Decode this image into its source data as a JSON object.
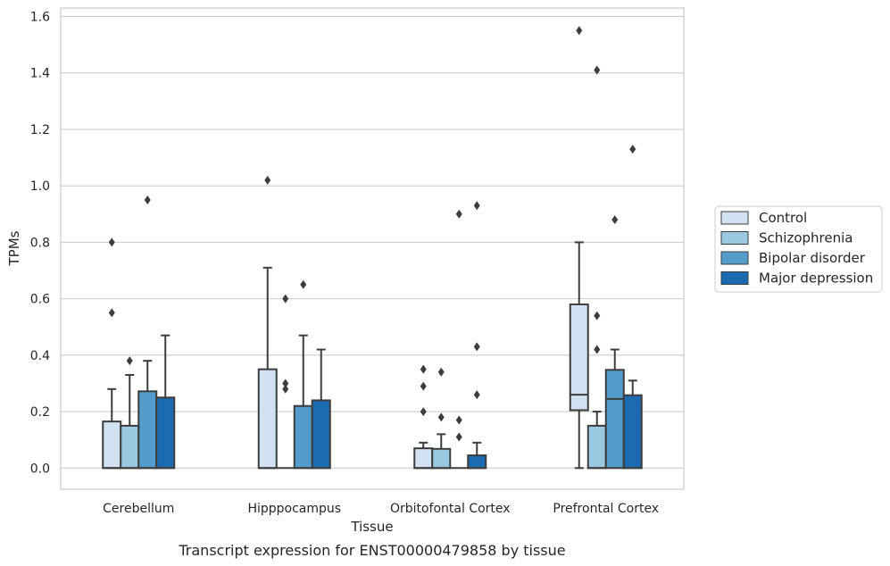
{
  "chart_data": {
    "type": "box",
    "caption": "Transcript expression for ENST00000479858 by tissue",
    "xlabel": "Tissue",
    "ylabel": "TPMs",
    "ylim": [
      -0.075,
      1.63
    ],
    "yticks": [
      "0.0",
      "0.2",
      "0.4",
      "0.6",
      "0.8",
      "1.0",
      "1.2",
      "1.4",
      "1.6"
    ],
    "grid": "horizontal",
    "legend_placement": "right",
    "categories": [
      "Cerebellum",
      "Hipppocampus",
      "Orbitofontal Cortex",
      "Prefrontal Cortex"
    ],
    "series": [
      {
        "name": "Control",
        "color": "#d1e2f2",
        "boxes": [
          {
            "q1": 0.0,
            "median": 0.0,
            "q3": 0.165,
            "whisker_low": 0.0,
            "whisker_high": 0.28,
            "outliers": [
              0.55,
              0.8
            ]
          },
          {
            "q1": 0.0,
            "median": 0.0,
            "q3": 0.35,
            "whisker_low": 0.0,
            "whisker_high": 0.71,
            "outliers": [
              1.02
            ]
          },
          {
            "q1": 0.0,
            "median": 0.0,
            "q3": 0.07,
            "whisker_low": 0.0,
            "whisker_high": 0.09,
            "outliers": [
              0.2,
              0.29,
              0.35
            ]
          },
          {
            "q1": 0.205,
            "median": 0.26,
            "q3": 0.58,
            "whisker_low": 0.0,
            "whisker_high": 0.8,
            "outliers": [
              1.55
            ]
          }
        ]
      },
      {
        "name": "Schizophrenia",
        "color": "#9ac8e0",
        "boxes": [
          {
            "q1": 0.0,
            "median": 0.0,
            "q3": 0.15,
            "whisker_low": 0.0,
            "whisker_high": 0.33,
            "outliers": [
              0.38
            ]
          },
          {
            "q1": 0.0,
            "median": 0.0,
            "q3": 0.0,
            "whisker_low": 0.0,
            "whisker_high": 0.0,
            "outliers": [
              0.28,
              0.3,
              0.6
            ]
          },
          {
            "q1": 0.0,
            "median": 0.0,
            "q3": 0.068,
            "whisker_low": 0.0,
            "whisker_high": 0.12,
            "outliers": [
              0.18,
              0.34
            ]
          },
          {
            "q1": 0.0,
            "median": 0.0,
            "q3": 0.15,
            "whisker_low": 0.0,
            "whisker_high": 0.2,
            "outliers": [
              0.42,
              0.54,
              1.41
            ]
          }
        ]
      },
      {
        "name": "Bipolar disorder",
        "color": "#529dcc",
        "boxes": [
          {
            "q1": 0.0,
            "median": 0.0,
            "q3": 0.272,
            "whisker_low": 0.0,
            "whisker_high": 0.38,
            "outliers": [
              0.95
            ]
          },
          {
            "q1": 0.0,
            "median": 0.0,
            "q3": 0.22,
            "whisker_low": 0.0,
            "whisker_high": 0.47,
            "outliers": [
              0.65
            ]
          },
          {
            "q1": 0.0,
            "median": 0.0,
            "q3": 0.0,
            "whisker_low": 0.0,
            "whisker_high": 0.0,
            "outliers": [
              0.11,
              0.17,
              0.9
            ]
          },
          {
            "q1": 0.0,
            "median": 0.245,
            "q3": 0.348,
            "whisker_low": 0.0,
            "whisker_high": 0.42,
            "outliers": [
              0.88
            ]
          }
        ]
      },
      {
        "name": "Major depression",
        "color": "#1c6aaf",
        "boxes": [
          {
            "q1": 0.0,
            "median": 0.0,
            "q3": 0.25,
            "whisker_low": 0.0,
            "whisker_high": 0.47,
            "outliers": []
          },
          {
            "q1": 0.0,
            "median": 0.0,
            "q3": 0.24,
            "whisker_low": 0.0,
            "whisker_high": 0.42,
            "outliers": []
          },
          {
            "q1": 0.0,
            "median": 0.0,
            "q3": 0.045,
            "whisker_low": 0.0,
            "whisker_high": 0.09,
            "outliers": [
              0.26,
              0.43,
              0.93
            ]
          },
          {
            "q1": 0.0,
            "median": 0.0,
            "q3": 0.258,
            "whisker_low": 0.0,
            "whisker_high": 0.31,
            "outliers": [
              1.13
            ]
          }
        ]
      }
    ]
  }
}
